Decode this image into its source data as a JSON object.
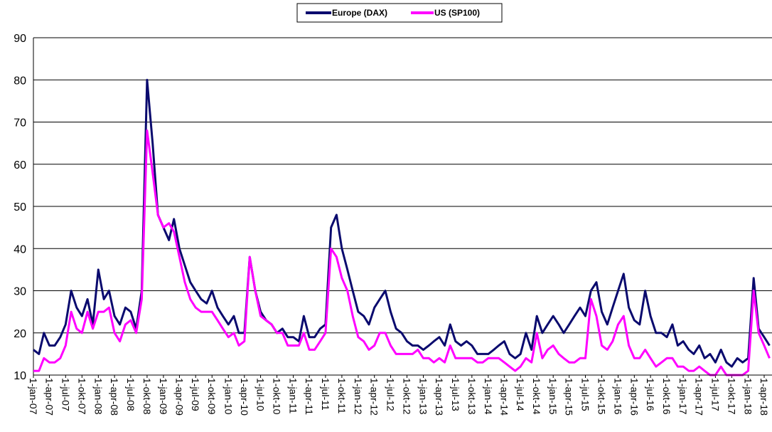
{
  "chart_data": {
    "type": "line",
    "series": [
      {
        "name": "Europe (DAX)",
        "color": "#0a0a6e",
        "values": [
          16,
          15,
          20,
          17,
          17,
          19,
          22,
          30,
          26,
          24,
          28,
          22,
          35,
          28,
          30,
          24,
          22,
          26,
          25,
          21,
          30,
          80,
          65,
          48,
          45,
          42,
          47,
          40,
          36,
          32,
          30,
          28,
          27,
          30,
          26,
          24,
          22,
          24,
          20,
          20,
          38,
          30,
          25,
          23,
          22,
          20,
          21,
          19,
          19,
          18,
          24,
          19,
          19,
          21,
          22,
          45,
          48,
          40,
          35,
          30,
          25,
          24,
          22,
          26,
          28,
          30,
          25,
          21,
          20,
          18,
          17,
          17,
          16,
          17,
          18,
          19,
          17,
          22,
          18,
          17,
          18,
          17,
          15,
          15,
          15,
          16,
          17,
          18,
          15,
          14,
          15,
          20,
          16,
          24,
          20,
          22,
          24,
          22,
          20,
          22,
          24,
          26,
          24,
          30,
          32,
          25,
          22,
          26,
          30,
          34,
          26,
          23,
          22,
          30,
          24,
          20,
          20,
          19,
          22,
          17,
          18,
          16,
          15,
          17,
          14,
          15,
          13,
          16,
          13,
          12,
          14,
          13,
          14,
          33,
          21,
          19,
          17
        ]
      },
      {
        "name": "US (SP100)",
        "color": "#ff00ff",
        "values": [
          11,
          11,
          14,
          13,
          13,
          14,
          17,
          25,
          21,
          20,
          25,
          21,
          25,
          25,
          26,
          20,
          18,
          22,
          23,
          20,
          28,
          68,
          58,
          48,
          45,
          46,
          44,
          38,
          32,
          28,
          26,
          25,
          25,
          25,
          23,
          21,
          19,
          20,
          17,
          18,
          38,
          30,
          24,
          23,
          22,
          20,
          20,
          17,
          17,
          17,
          20,
          16,
          16,
          18,
          20,
          40,
          38,
          33,
          30,
          24,
          19,
          18,
          16,
          17,
          20,
          20,
          17,
          15,
          15,
          15,
          15,
          16,
          14,
          14,
          13,
          14,
          13,
          17,
          14,
          14,
          14,
          14,
          13,
          13,
          14,
          14,
          14,
          13,
          12,
          11,
          12,
          14,
          13,
          20,
          14,
          16,
          17,
          15,
          14,
          13,
          13,
          14,
          14,
          28,
          24,
          17,
          16,
          18,
          22,
          24,
          17,
          14,
          14,
          16,
          14,
          12,
          13,
          14,
          14,
          12,
          12,
          11,
          11,
          12,
          11,
          10,
          10,
          12,
          10,
          10,
          10,
          10,
          11,
          30,
          20,
          17,
          14
        ]
      }
    ],
    "x": [
      "2007-01-01",
      "2007-02-01",
      "2007-03-01",
      "2007-04-01",
      "2007-05-01",
      "2007-06-01",
      "2007-07-01",
      "2007-08-01",
      "2007-09-01",
      "2007-10-01",
      "2007-11-01",
      "2007-12-01",
      "2008-01-01",
      "2008-02-01",
      "2008-03-01",
      "2008-04-01",
      "2008-05-01",
      "2008-06-01",
      "2008-07-01",
      "2008-08-01",
      "2008-09-01",
      "2008-10-01",
      "2008-11-01",
      "2008-12-01",
      "2009-01-01",
      "2009-02-01",
      "2009-03-01",
      "2009-04-01",
      "2009-05-01",
      "2009-06-01",
      "2009-07-01",
      "2009-08-01",
      "2009-09-01",
      "2009-10-01",
      "2009-11-01",
      "2009-12-01",
      "2010-01-01",
      "2010-02-01",
      "2010-03-01",
      "2010-04-01",
      "2010-05-01",
      "2010-06-01",
      "2010-07-01",
      "2010-08-01",
      "2010-09-01",
      "2010-10-01",
      "2010-11-01",
      "2010-12-01",
      "2011-01-01",
      "2011-02-01",
      "2011-03-01",
      "2011-04-01",
      "2011-05-01",
      "2011-06-01",
      "2011-07-01",
      "2011-08-01",
      "2011-09-01",
      "2011-10-01",
      "2011-11-01",
      "2011-12-01",
      "2012-01-01",
      "2012-02-01",
      "2012-03-01",
      "2012-04-01",
      "2012-05-01",
      "2012-06-01",
      "2012-07-01",
      "2012-08-01",
      "2012-09-01",
      "2012-10-01",
      "2012-11-01",
      "2012-12-01",
      "2013-01-01",
      "2013-02-01",
      "2013-03-01",
      "2013-04-01",
      "2013-05-01",
      "2013-06-01",
      "2013-07-01",
      "2013-08-01",
      "2013-09-01",
      "2013-10-01",
      "2013-11-01",
      "2013-12-01",
      "2014-01-01",
      "2014-02-01",
      "2014-03-01",
      "2014-04-01",
      "2014-05-01",
      "2014-06-01",
      "2014-07-01",
      "2014-08-01",
      "2014-09-01",
      "2014-10-01",
      "2014-11-01",
      "2014-12-01",
      "2015-01-01",
      "2015-02-01",
      "2015-03-01",
      "2015-04-01",
      "2015-05-01",
      "2015-06-01",
      "2015-07-01",
      "2015-08-01",
      "2015-09-01",
      "2015-10-01",
      "2015-11-01",
      "2015-12-01",
      "2016-01-01",
      "2016-02-01",
      "2016-03-01",
      "2016-04-01",
      "2016-05-01",
      "2016-06-01",
      "2016-07-01",
      "2016-08-01",
      "2016-09-01",
      "2016-10-01",
      "2016-11-01",
      "2016-12-01",
      "2017-01-01",
      "2017-02-01",
      "2017-03-01",
      "2017-04-01",
      "2017-05-01",
      "2017-06-01",
      "2017-07-01",
      "2017-08-01",
      "2017-09-01",
      "2017-10-01",
      "2017-11-01",
      "2017-12-01",
      "2018-01-01",
      "2018-02-01",
      "2018-03-01",
      "2018-04-01",
      "2018-05-01"
    ],
    "xlim": [
      "2007-01-01",
      "2018-05-15"
    ],
    "xticks": [
      {
        "value": "2007-01-01",
        "label": "1-jan-07"
      },
      {
        "value": "2007-04-01",
        "label": "1-apr-07"
      },
      {
        "value": "2007-07-01",
        "label": "1-jul-07"
      },
      {
        "value": "2007-10-01",
        "label": "1-okt-07"
      },
      {
        "value": "2008-01-01",
        "label": "1-jan-08"
      },
      {
        "value": "2008-04-01",
        "label": "1-apr-08"
      },
      {
        "value": "2008-07-01",
        "label": "1-jul-08"
      },
      {
        "value": "2008-10-01",
        "label": "1-okt-08"
      },
      {
        "value": "2009-01-01",
        "label": "1-jan-09"
      },
      {
        "value": "2009-04-01",
        "label": "1-apr-09"
      },
      {
        "value": "2009-07-01",
        "label": "1-jul-09"
      },
      {
        "value": "2009-10-01",
        "label": "1-okt-09"
      },
      {
        "value": "2010-01-01",
        "label": "1-jan-10"
      },
      {
        "value": "2010-04-01",
        "label": "1-apr-10"
      },
      {
        "value": "2010-07-01",
        "label": "1-jul-10"
      },
      {
        "value": "2010-10-01",
        "label": "1-okt-10"
      },
      {
        "value": "2011-01-01",
        "label": "1-jan-11"
      },
      {
        "value": "2011-04-01",
        "label": "1-apr-11"
      },
      {
        "value": "2011-07-01",
        "label": "1-jul-11"
      },
      {
        "value": "2011-10-01",
        "label": "1-okt-11"
      },
      {
        "value": "2012-01-01",
        "label": "1-jan-12"
      },
      {
        "value": "2012-04-01",
        "label": "1-apr-12"
      },
      {
        "value": "2012-07-01",
        "label": "1-jul-12"
      },
      {
        "value": "2012-10-01",
        "label": "1-okt-12"
      },
      {
        "value": "2013-01-01",
        "label": "1-jan-13"
      },
      {
        "value": "2013-04-01",
        "label": "1-apr-13"
      },
      {
        "value": "2013-07-01",
        "label": "1-jul-13"
      },
      {
        "value": "2013-10-01",
        "label": "1-okt-13"
      },
      {
        "value": "2014-01-01",
        "label": "1-jan-14"
      },
      {
        "value": "2014-04-01",
        "label": "1-apr-14"
      },
      {
        "value": "2014-07-01",
        "label": "1-jul-14"
      },
      {
        "value": "2014-10-01",
        "label": "1-okt-14"
      },
      {
        "value": "2015-01-01",
        "label": "1-jan-15"
      },
      {
        "value": "2015-04-01",
        "label": "1-apr-15"
      },
      {
        "value": "2015-07-01",
        "label": "1-jul-15"
      },
      {
        "value": "2015-10-01",
        "label": "1-okt-15"
      },
      {
        "value": "2016-01-01",
        "label": "1-jan-16"
      },
      {
        "value": "2016-04-01",
        "label": "1-apr-16"
      },
      {
        "value": "2016-07-01",
        "label": "1-jul-16"
      },
      {
        "value": "2016-10-01",
        "label": "1-okt-16"
      },
      {
        "value": "2017-01-01",
        "label": "1-jan-17"
      },
      {
        "value": "2017-04-01",
        "label": "1-apr-17"
      },
      {
        "value": "2017-07-01",
        "label": "1-jul-17"
      },
      {
        "value": "2017-10-01",
        "label": "1-okt-17"
      },
      {
        "value": "2018-01-01",
        "label": "1-jan-18"
      },
      {
        "value": "2018-04-01",
        "label": "1-apr-18"
      }
    ],
    "ylim": [
      10,
      90
    ],
    "yticks": [
      10,
      20,
      30,
      40,
      50,
      60,
      70,
      80,
      90
    ],
    "grid": true,
    "legend": "top"
  }
}
